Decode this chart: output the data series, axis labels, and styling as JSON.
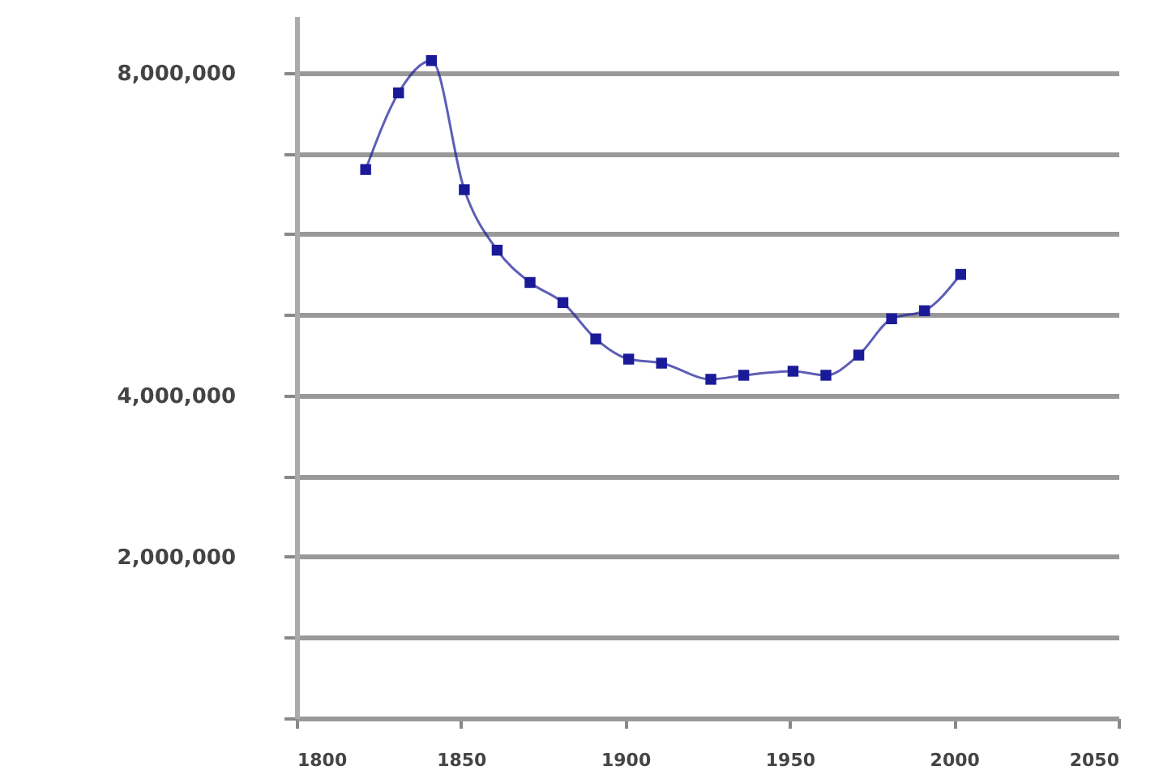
{
  "chart_data": {
    "type": "line",
    "x": [
      1821,
      1831,
      1841,
      1851,
      1861,
      1871,
      1881,
      1891,
      1901,
      1911,
      1926,
      1936,
      1951,
      1961,
      1971,
      1981,
      1991,
      2002
    ],
    "series": [
      {
        "color": "#1a1a99",
        "values": [
          6800000,
          7750000,
          8150000,
          6550000,
          5800000,
          5400000,
          5150000,
          4700000,
          4450000,
          4400000,
          4200000,
          4250000,
          4300000,
          4250000,
          4500000,
          4950000,
          5050000,
          5500000
        ]
      }
    ],
    "xlim": [
      1800,
      2050
    ],
    "xticks": [
      1800,
      1850,
      1900,
      1950,
      2000,
      2050
    ],
    "ylim": [
      0,
      8700000
    ],
    "yticks": [
      {
        "value": 0,
        "label": null
      },
      {
        "value": 1000000,
        "label": null
      },
      {
        "value": 2000000,
        "label": "2,000,000"
      },
      {
        "value": 3000000,
        "label": null
      },
      {
        "value": 4000000,
        "label": "4,000,000"
      },
      {
        "value": 5000000,
        "label": null
      },
      {
        "value": 6000000,
        "label": null
      },
      {
        "value": 7000000,
        "label": null
      },
      {
        "value": 8000000,
        "label": "8,000,000"
      }
    ],
    "grid": "y",
    "marker": "square",
    "line_style": "solid"
  }
}
